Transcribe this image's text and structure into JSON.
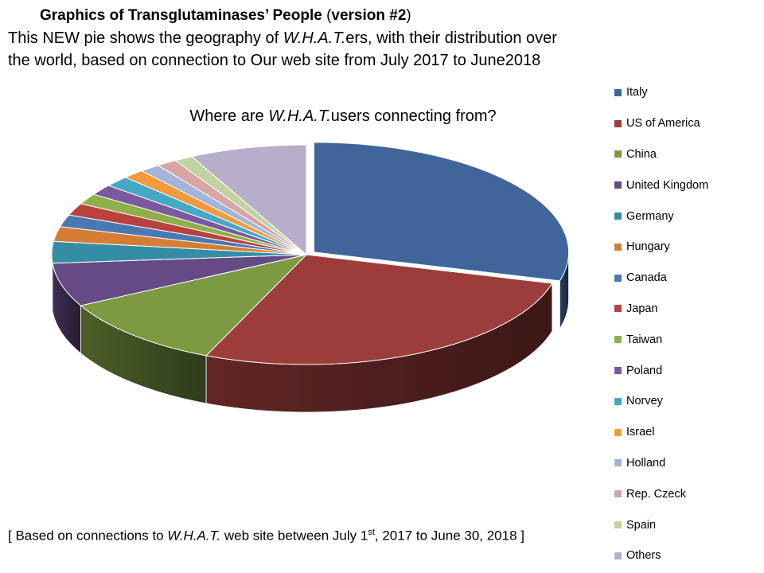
{
  "header": {
    "title_bold": "Graphics of Transglutaminases’ People",
    "title_open": " (",
    "title_version": "version #2",
    "title_close": ")",
    "line2_pre": "This NEW pie shows the geography of ",
    "line2_em": "W.H.A.T.",
    "line2_post": "ers, with  their distribution over",
    "line3": "the world, based on connection to Our web site from July 2017 to June2018"
  },
  "footer": {
    "pre": "[ Based on connections to ",
    "em": "W.H.A.T.",
    "mid": " web site between July  1",
    "sup": "st",
    "post": ", 2017 to June 30, 2018 ]"
  },
  "chart_data": {
    "type": "pie",
    "title_pre": "Where are ",
    "title_em": "W.H.A.T.",
    "title_post": "users connecting from?",
    "legend_position": "right",
    "start_angle_deg": 90,
    "direction": "clockwise",
    "categories": [
      "Italy",
      "US of America",
      "China",
      "United Kingdom",
      "Germany",
      "Hungary",
      "Canada",
      "Japan",
      "Taiwan",
      "Poland",
      "Norvey",
      "Israel",
      "Holland",
      "Rep. Czeck",
      "Spain",
      "Others"
    ],
    "values": [
      29.5,
      27.5,
      11,
      6.5,
      3.2,
      2.2,
      1.8,
      1.8,
      1.6,
      1.6,
      1.6,
      1.4,
      1.3,
      1.3,
      1.2,
      7.5
    ],
    "colors": [
      "#3F659B",
      "#9C3D3B",
      "#7C9A42",
      "#654A86",
      "#358DA5",
      "#D47E33",
      "#4A78B3",
      "#B9423E",
      "#8FAF4B",
      "#7A5A9E",
      "#45A8C4",
      "#F29A3D",
      "#A3B4D6",
      "#D7A5A4",
      "#BFD4A1",
      "#B7AFCA"
    ],
    "exploded": [
      "Italy"
    ]
  }
}
